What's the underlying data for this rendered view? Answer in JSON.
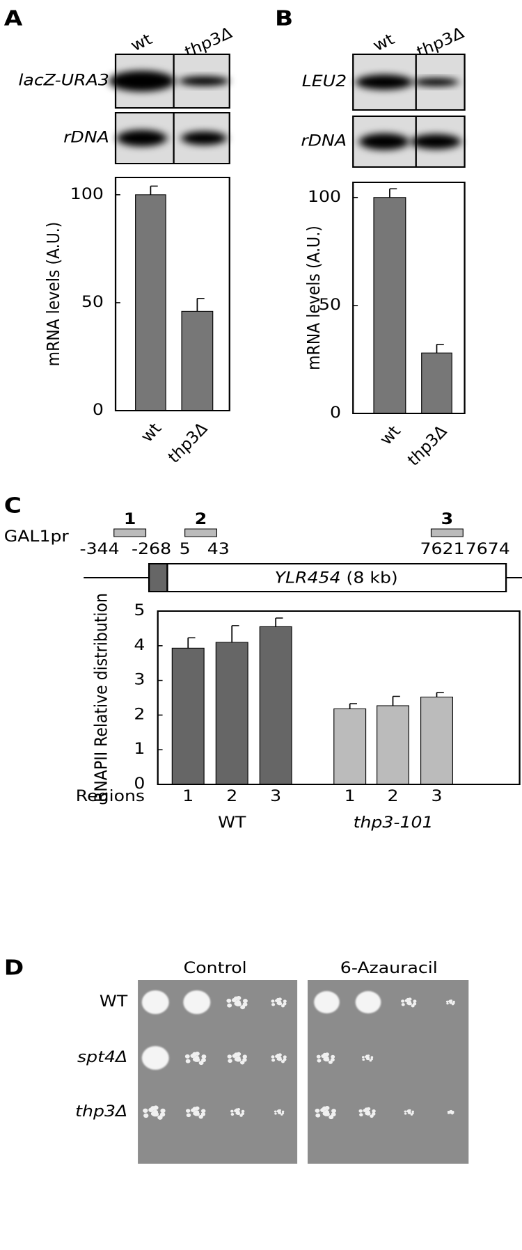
{
  "panel_labels": [
    "A",
    "B",
    "C",
    "D"
  ],
  "blots": [
    {
      "lanes": [
        "wt",
        "thp3Δ"
      ],
      "rows": [
        "lacZ-URA3",
        "rDNA"
      ]
    },
    {
      "lanes": [
        "wt",
        "thp3Δ"
      ],
      "rows": [
        "LEU2",
        "rDNA"
      ]
    }
  ],
  "chart_data": [
    {
      "type": "bar",
      "categories": [
        "wt",
        "thp3Δ"
      ],
      "values": [
        100,
        46
      ],
      "errors": [
        4,
        6
      ],
      "color": "#777777",
      "ylabel": "mRNA levels (A.U.)",
      "ylim": [
        0,
        108
      ],
      "yticks": [
        0,
        50,
        100
      ]
    },
    {
      "type": "bar",
      "categories": [
        "wt",
        "thp3Δ"
      ],
      "values": [
        100,
        28
      ],
      "errors": [
        4,
        4
      ],
      "color": "#777777",
      "ylabel": "mRNA levels (A.U.)",
      "ylim": [
        0,
        107
      ],
      "yticks": [
        0,
        50,
        100
      ]
    },
    {
      "type": "grouped_bar",
      "xlabel": "Regions",
      "categories": [
        "1",
        "2",
        "3"
      ],
      "series": [
        {
          "name": "WT",
          "color": "#666666",
          "values": [
            3.93,
            4.1,
            4.55
          ],
          "errors": [
            0.3,
            0.48,
            0.25
          ]
        },
        {
          "name": "thp3-101",
          "color": "#bbbbbb",
          "values": [
            2.18,
            2.27,
            2.52
          ],
          "errors": [
            0.15,
            0.27,
            0.13
          ]
        }
      ],
      "ylabel": "RNAPII  Relative distribution",
      "ylim": [
        0,
        5
      ],
      "yticks": [
        0,
        1,
        2,
        3,
        4,
        5
      ]
    }
  ],
  "map": {
    "promoter": "GAL1pr",
    "gene": "YLR454",
    "gene_size": "(8 kb)",
    "regions": [
      {
        "label": "1",
        "start": -344,
        "end": -268
      },
      {
        "label": "2",
        "start": 5,
        "end": 43
      },
      {
        "label": "3",
        "start": 7621,
        "end": 7674
      }
    ]
  },
  "spot_assay": {
    "conditions": [
      "Control",
      "6-Azauracil"
    ],
    "strains": [
      "WT",
      "spt4Δ",
      "thp3Δ"
    ]
  }
}
